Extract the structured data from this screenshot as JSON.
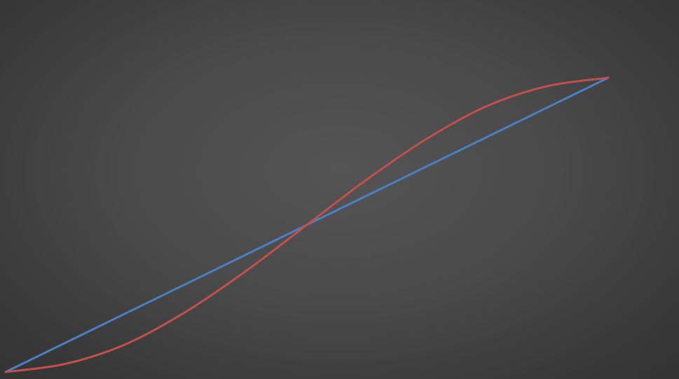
{
  "chart_data": {
    "type": "line",
    "title": "",
    "xlabel": "",
    "ylabel": "",
    "xlim": [
      0,
      1
    ],
    "ylim": [
      0,
      1
    ],
    "grid": false,
    "axes_visible": false,
    "series": [
      {
        "color": "#4a7fc1",
        "x": [
          0,
          0.5,
          1
        ],
        "y": [
          0,
          0.5,
          1
        ]
      },
      {
        "color": "#c0504d",
        "x": [
          0,
          0.1,
          0.2,
          0.3,
          0.4,
          0.5,
          0.6,
          0.7,
          0.8,
          0.9,
          1.0
        ],
        "y": [
          0,
          0.028,
          0.095,
          0.206,
          0.345,
          0.5,
          0.655,
          0.794,
          0.905,
          0.972,
          1.0
        ]
      }
    ]
  }
}
